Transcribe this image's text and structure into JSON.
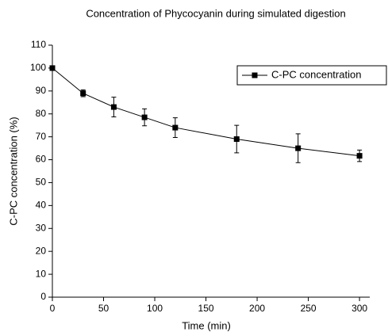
{
  "chart_data": {
    "type": "line",
    "title": "Concentration of Phycocyanin during simulated digestion",
    "x_label": "Time (min)",
    "y_label": "C-PC concentration (%)",
    "x": [
      0,
      30,
      60,
      90,
      120,
      180,
      240,
      300
    ],
    "series": [
      {
        "name": "C-PC concentration",
        "color": "#000000",
        "values": [
          100,
          89,
          83,
          78.5,
          74,
          69,
          65,
          61.7
        ],
        "errors": [
          1,
          1.5,
          4.3,
          3.7,
          4.3,
          6,
          6.3,
          2.5
        ]
      }
    ],
    "xlim": [
      0,
      310
    ],
    "xticks": [
      0,
      50,
      100,
      150,
      200,
      250,
      300
    ],
    "ylim": [
      0,
      110
    ],
    "yticks": [
      0,
      10,
      20,
      30,
      40,
      50,
      60,
      70,
      80,
      90,
      100,
      110
    ],
    "grid": false,
    "legend": "upper right"
  }
}
